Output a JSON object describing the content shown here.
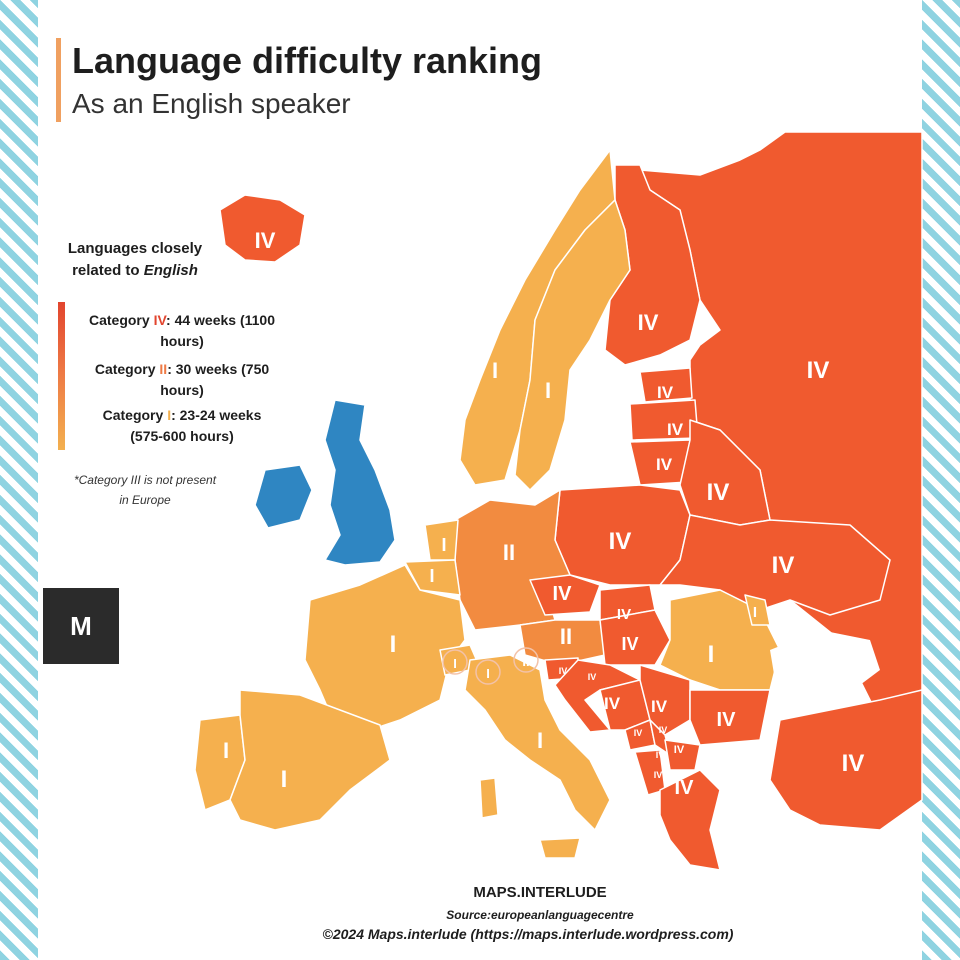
{
  "header": {
    "title": "Language difficulty ranking",
    "subtitle": "As an English speaker"
  },
  "legend": {
    "heading_line1": "Languages closely",
    "heading_line2_prefix": "related to ",
    "heading_line2_em": "English",
    "items": [
      {
        "prefix": "Category ",
        "numeral": "IV",
        "line1_rest": ": 44 weeks (1100",
        "line2": "hours)",
        "color": "#e2452e"
      },
      {
        "prefix": "Category ",
        "numeral": "II",
        "line1_rest": ": 30 weeks (750",
        "line2": "hours)",
        "color": "#ee7a45"
      },
      {
        "prefix": "Category ",
        "numeral": "I",
        "line1_rest": ": 23-24 weeks",
        "line2": "(575-600 hours)",
        "color": "#f3b04f"
      }
    ],
    "note_line1": "*Category III is not present",
    "note_line2": "in Europe"
  },
  "colors": {
    "cat4": "#f05a2f",
    "cat2": "#f28b40",
    "cat1": "#f5b04e",
    "english": "#2f86c2",
    "sea": "#ffffff",
    "stripes": "#8fd3e1"
  },
  "logo": {
    "glyph": "M",
    "icon": "maps-interlude-logo-icon"
  },
  "map_labels": [
    {
      "name": "iceland",
      "label": "IV"
    },
    {
      "name": "norway",
      "label": "I"
    },
    {
      "name": "sweden",
      "label": "I"
    },
    {
      "name": "finland",
      "label": "IV"
    },
    {
      "name": "russia",
      "label": "IV"
    },
    {
      "name": "estonia",
      "label": "IV"
    },
    {
      "name": "latvia",
      "label": "IV"
    },
    {
      "name": "lithuania",
      "label": "IV"
    },
    {
      "name": "belarus",
      "label": "IV"
    },
    {
      "name": "poland",
      "label": "IV"
    },
    {
      "name": "ukraine",
      "label": "IV"
    },
    {
      "name": "germany",
      "label": "II"
    },
    {
      "name": "netherlands",
      "label": "I"
    },
    {
      "name": "belgium",
      "label": "I"
    },
    {
      "name": "france",
      "label": "I"
    },
    {
      "name": "czechia",
      "label": "IV"
    },
    {
      "name": "slovakia",
      "label": "IV"
    },
    {
      "name": "austria",
      "label": "II"
    },
    {
      "name": "hungary",
      "label": "IV"
    },
    {
      "name": "moldova",
      "label": "I"
    },
    {
      "name": "romania",
      "label": "I"
    },
    {
      "name": "switzerland",
      "label": "I"
    },
    {
      "name": "italy-north",
      "label": "I"
    },
    {
      "name": "liechtenstein",
      "label": "II"
    },
    {
      "name": "slovenia",
      "label": "IV"
    },
    {
      "name": "croatia-north",
      "label": "IV"
    },
    {
      "name": "croatia",
      "label": "IV"
    },
    {
      "name": "serbia",
      "label": "IV"
    },
    {
      "name": "bulgaria",
      "label": "IV"
    },
    {
      "name": "bosnia",
      "label": "IV"
    },
    {
      "name": "montenegro",
      "label": "IV"
    },
    {
      "name": "kosovo",
      "label": "IV"
    },
    {
      "name": "north-macedonia",
      "label": "IV"
    },
    {
      "name": "albania",
      "label": "IV"
    },
    {
      "name": "greece",
      "label": "IV"
    },
    {
      "name": "turkey",
      "label": "IV"
    },
    {
      "name": "portugal",
      "label": "I"
    },
    {
      "name": "spain",
      "label": "I"
    },
    {
      "name": "italy",
      "label": "I"
    }
  ],
  "footer": {
    "brand": "MAPS.INTERLUDE",
    "source": "Source:europeanlanguagecentre",
    "copyright": "©2024 Maps.interlude (https://maps.interlude.wordpress.com)"
  }
}
